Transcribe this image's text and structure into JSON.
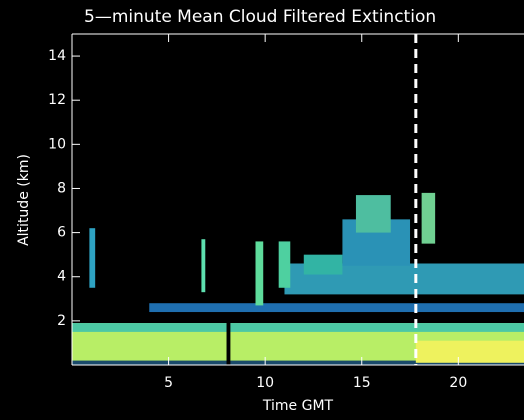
{
  "chart_data": {
    "type": "heatmap",
    "title": "5—minute Mean Cloud Filtered Extinction",
    "x_label": "Time GMT",
    "y_label": "Altitude (km)",
    "xlim": [
      0,
      23.4
    ],
    "xticks": [
      5,
      10,
      15,
      20
    ],
    "ylim": [
      0,
      15
    ],
    "yticks": [
      2,
      4,
      6,
      8,
      10,
      12,
      14
    ],
    "marker_x": 17.8,
    "regions": [
      {
        "x": [
          0,
          23.4
        ],
        "y": [
          0,
          1.9
        ],
        "color": "#b8ee66"
      },
      {
        "x": [
          0,
          23.4
        ],
        "y": [
          1.5,
          1.9
        ],
        "color": "#4cc8a4"
      },
      {
        "x": [
          0,
          23.4
        ],
        "y": [
          0,
          0.2
        ],
        "color": "#1a4a6a"
      },
      {
        "x": [
          17.8,
          23.4
        ],
        "y": [
          0.1,
          1.1
        ],
        "color": "#eef25e"
      },
      {
        "x": [
          8.0,
          8.2
        ],
        "y": [
          0,
          2.2
        ],
        "color": "#000000"
      },
      {
        "x": [
          4,
          23.4
        ],
        "y": [
          2.4,
          2.8
        ],
        "color": "#1f6fb0"
      },
      {
        "x": [
          11,
          23.4
        ],
        "y": [
          3.2,
          4.6
        ],
        "color": "#2f9ab4"
      },
      {
        "x": [
          0.9,
          1.2
        ],
        "y": [
          3.5,
          6.2
        ],
        "color": "#2ea2c2"
      },
      {
        "x": [
          6.7,
          6.9
        ],
        "y": [
          3.3,
          5.7
        ],
        "color": "#5ee0b0"
      },
      {
        "x": [
          9.5,
          9.9
        ],
        "y": [
          2.7,
          5.6
        ],
        "color": "#5edc9c"
      },
      {
        "x": [
          10.7,
          11.3
        ],
        "y": [
          3.5,
          5.6
        ],
        "color": "#4ed0a0"
      },
      {
        "x": [
          12,
          14
        ],
        "y": [
          4.1,
          5.0
        ],
        "color": "#32b4a4"
      },
      {
        "x": [
          14,
          17.5
        ],
        "y": [
          4.5,
          6.6
        ],
        "color": "#2a92b6"
      },
      {
        "x": [
          14.7,
          16.5
        ],
        "y": [
          6.0,
          7.7
        ],
        "color": "#4ebea0"
      },
      {
        "x": [
          18.1,
          18.8
        ],
        "y": [
          5.5,
          7.8
        ],
        "color": "#70d092"
      }
    ]
  }
}
